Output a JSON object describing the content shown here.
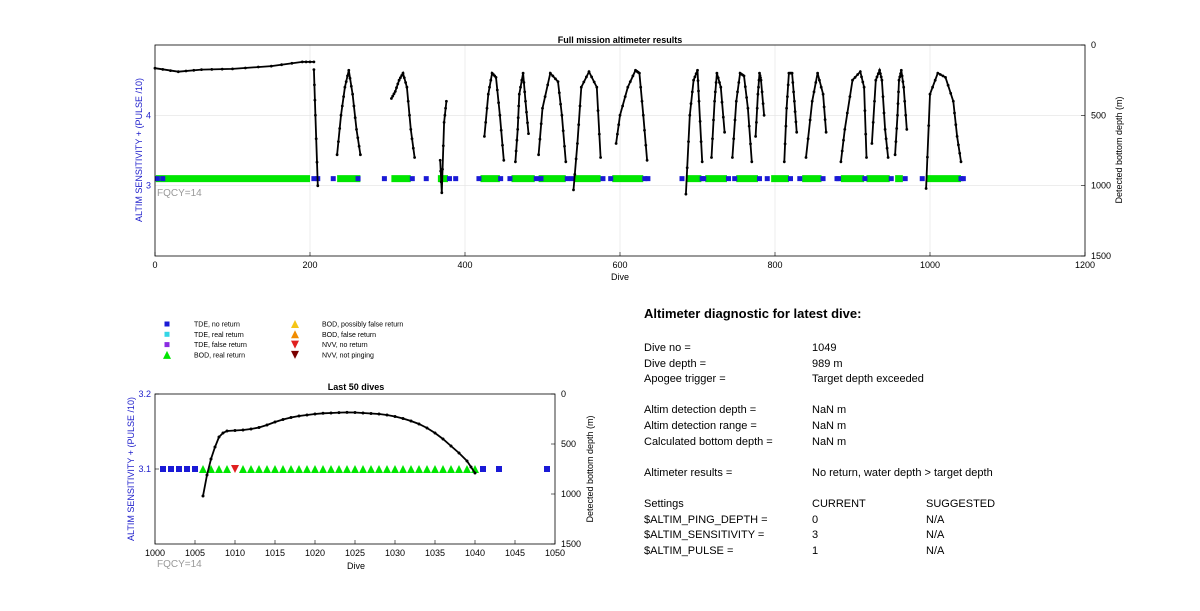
{
  "colors": {
    "tde_no_return": "#1a1ad6",
    "tde_real_return": "#33d6e6",
    "tde_false_return": "#8a2be2",
    "bod_real_return": "#00e600",
    "bod_possibly_false": "#f5c518",
    "bod_false_return": "#f08c00",
    "nvv_no_return": "#e02020",
    "nvv_not_pinging": "#7a0000",
    "depth_line": "#000000",
    "left_axis": "#2222cc",
    "fqcy": "#999999"
  },
  "chart_data": [
    {
      "type": "scatter",
      "title": "Full mission altimeter results",
      "xlabel": "Dive",
      "ylabel": "ALTIM SENSITIVITY + (PULSE /10)",
      "y2label": "Detected bottom depth (m)",
      "xlim": [
        0,
        1200
      ],
      "ylim": [
        2,
        5
      ],
      "y2lim": [
        1500,
        0
      ],
      "xticks": [
        "0",
        "200",
        "400",
        "600",
        "800",
        "1000",
        "1200"
      ],
      "yticks": [
        "3",
        "4"
      ],
      "y2ticks": [
        "0",
        "500",
        "1000",
        "1500"
      ],
      "grid": true,
      "annotation": "FQCY=14",
      "sensitivity_level": 3.1,
      "bod_segments": [
        [
          1,
          200
        ],
        [
          235,
          265
        ],
        [
          305,
          330
        ],
        [
          365,
          378
        ],
        [
          420,
          445
        ],
        [
          460,
          490
        ],
        [
          495,
          530
        ],
        [
          540,
          575
        ],
        [
          590,
          630
        ],
        [
          685,
          705
        ],
        [
          710,
          738
        ],
        [
          750,
          778
        ],
        [
          795,
          818
        ],
        [
          835,
          860
        ],
        [
          885,
          915
        ],
        [
          918,
          948
        ],
        [
          955,
          965
        ],
        [
          995,
          1040
        ]
      ],
      "tde_points": [
        3,
        10,
        205,
        210,
        230,
        262,
        296,
        332,
        350,
        380,
        388,
        418,
        446,
        458,
        492,
        498,
        532,
        538,
        578,
        588,
        632,
        636,
        680,
        706,
        708,
        740,
        748,
        780,
        790,
        820,
        832,
        862,
        880,
        882,
        916,
        950,
        968,
        990,
        1040,
        1043
      ],
      "depth_series": [
        [
          [
            0,
            165
          ],
          [
            30,
            190
          ],
          [
            60,
            175
          ],
          [
            100,
            170
          ],
          [
            150,
            150
          ],
          [
            190,
            120
          ],
          [
            205,
            120
          ]
        ],
        [
          [
            205,
            175
          ],
          [
            207,
            500
          ],
          [
            210,
            1000
          ]
        ],
        [
          [
            235,
            780
          ],
          [
            240,
            500
          ],
          [
            245,
            300
          ],
          [
            250,
            180
          ],
          [
            255,
            350
          ],
          [
            260,
            600
          ],
          [
            265,
            780
          ]
        ],
        [
          [
            305,
            380
          ],
          [
            310,
            330
          ],
          [
            315,
            250
          ],
          [
            320,
            200
          ],
          [
            325,
            300
          ],
          [
            330,
            600
          ],
          [
            335,
            800
          ]
        ],
        [
          [
            368,
            820
          ],
          [
            370,
            1050
          ],
          [
            373,
            550
          ],
          [
            376,
            400
          ]
        ],
        [
          [
            425,
            650
          ],
          [
            430,
            350
          ],
          [
            435,
            200
          ],
          [
            440,
            230
          ],
          [
            445,
            500
          ],
          [
            450,
            820
          ]
        ],
        [
          [
            465,
            830
          ],
          [
            468,
            600
          ],
          [
            470,
            350
          ],
          [
            475,
            200
          ],
          [
            478,
            400
          ],
          [
            482,
            630
          ]
        ],
        [
          [
            495,
            780
          ],
          [
            500,
            450
          ],
          [
            510,
            200
          ],
          [
            520,
            260
          ],
          [
            525,
            500
          ],
          [
            530,
            830
          ]
        ],
        [
          [
            540,
            1030
          ],
          [
            545,
            700
          ],
          [
            550,
            300
          ],
          [
            560,
            190
          ],
          [
            570,
            300
          ],
          [
            575,
            800
          ]
        ],
        [
          [
            595,
            700
          ],
          [
            600,
            500
          ],
          [
            610,
            300
          ],
          [
            620,
            180
          ],
          [
            625,
            200
          ],
          [
            630,
            500
          ],
          [
            635,
            820
          ]
        ],
        [
          [
            685,
            1060
          ],
          [
            690,
            500
          ],
          [
            695,
            250
          ],
          [
            700,
            180
          ],
          [
            702,
            400
          ],
          [
            706,
            830
          ]
        ],
        [
          [
            718,
            800
          ],
          [
            722,
            400
          ],
          [
            725,
            200
          ],
          [
            730,
            300
          ],
          [
            735,
            620
          ]
        ],
        [
          [
            745,
            800
          ],
          [
            750,
            400
          ],
          [
            755,
            200
          ],
          [
            760,
            220
          ],
          [
            765,
            450
          ],
          [
            770,
            830
          ]
        ],
        [
          [
            775,
            650
          ],
          [
            778,
            350
          ],
          [
            780,
            200
          ],
          [
            782,
            250
          ],
          [
            786,
            500
          ]
        ],
        [
          [
            812,
            830
          ],
          [
            815,
            450
          ],
          [
            818,
            200
          ],
          [
            822,
            200
          ],
          [
            825,
            400
          ],
          [
            828,
            620
          ]
        ],
        [
          [
            840,
            800
          ],
          [
            848,
            400
          ],
          [
            855,
            200
          ],
          [
            862,
            350
          ],
          [
            866,
            620
          ]
        ],
        [
          [
            885,
            830
          ],
          [
            890,
            600
          ],
          [
            900,
            250
          ],
          [
            910,
            190
          ],
          [
            915,
            300
          ],
          [
            918,
            800
          ]
        ],
        [
          [
            925,
            700
          ],
          [
            930,
            250
          ],
          [
            935,
            180
          ],
          [
            938,
            250
          ],
          [
            942,
            600
          ],
          [
            946,
            800
          ]
        ],
        [
          [
            955,
            780
          ],
          [
            958,
            500
          ],
          [
            960,
            250
          ],
          [
            963,
            180
          ],
          [
            966,
            300
          ],
          [
            970,
            600
          ]
        ],
        [
          [
            995,
            1020
          ],
          [
            1000,
            350
          ],
          [
            1010,
            200
          ],
          [
            1020,
            230
          ],
          [
            1030,
            400
          ],
          [
            1035,
            650
          ],
          [
            1040,
            830
          ]
        ]
      ]
    },
    {
      "type": "scatter",
      "title": "Last 50 dives",
      "xlabel": "Dive",
      "ylabel": "ALTIM SENSITIVITY + (PULSE /10)",
      "y2label": "Detected bottom depth (m)",
      "xlim": [
        1000,
        1050
      ],
      "ylim": [
        3.0,
        3.2
      ],
      "y2lim": [
        1500,
        0
      ],
      "xticks": [
        "1000",
        "1005",
        "1010",
        "1015",
        "1020",
        "1025",
        "1030",
        "1035",
        "1040",
        "1045",
        "1050"
      ],
      "yticks": [
        "3.1",
        "3.2"
      ],
      "y2ticks": [
        "0",
        "500",
        "1000",
        "1500"
      ],
      "annotation": "FQCY=14",
      "sensitivity_level": 3.1,
      "tde_points": [
        1001,
        1002,
        1003,
        1004,
        1005,
        1041,
        1043,
        1049
      ],
      "bod_points": [
        1006,
        1007,
        1008,
        1009,
        1011,
        1012,
        1013,
        1014,
        1015,
        1016,
        1017,
        1018,
        1019,
        1020,
        1021,
        1022,
        1023,
        1024,
        1025,
        1026,
        1027,
        1028,
        1029,
        1030,
        1031,
        1032,
        1033,
        1034,
        1035,
        1036,
        1037,
        1038,
        1039,
        1040
      ],
      "nvv_no_return_points": [
        1010
      ],
      "depth": [
        [
          1006,
          1020
        ],
        [
          1006.5,
          810
        ],
        [
          1007,
          650
        ],
        [
          1007.5,
          530
        ],
        [
          1008,
          430
        ],
        [
          1008.5,
          390
        ],
        [
          1009,
          370
        ],
        [
          1010,
          365
        ],
        [
          1011,
          360
        ],
        [
          1012,
          350
        ],
        [
          1013,
          335
        ],
        [
          1014,
          310
        ],
        [
          1015,
          280
        ],
        [
          1016,
          255
        ],
        [
          1017,
          235
        ],
        [
          1018,
          220
        ],
        [
          1019,
          210
        ],
        [
          1020,
          200
        ],
        [
          1021,
          193
        ],
        [
          1022,
          190
        ],
        [
          1023,
          186
        ],
        [
          1024,
          184
        ],
        [
          1025,
          185
        ],
        [
          1026,
          190
        ],
        [
          1027,
          195
        ],
        [
          1028,
          200
        ],
        [
          1029,
          210
        ],
        [
          1030,
          225
        ],
        [
          1031,
          245
        ],
        [
          1032,
          270
        ],
        [
          1033,
          300
        ],
        [
          1034,
          340
        ],
        [
          1035,
          390
        ],
        [
          1036,
          450
        ],
        [
          1037,
          520
        ],
        [
          1038,
          590
        ],
        [
          1039,
          670
        ],
        [
          1039.5,
          730
        ],
        [
          1040,
          790
        ]
      ]
    }
  ],
  "legend": {
    "items": [
      {
        "label": "TDE, no return",
        "marker": "square",
        "color_key": "tde_no_return"
      },
      {
        "label": "TDE, real return",
        "marker": "square",
        "color_key": "tde_real_return"
      },
      {
        "label": "TDE, false return",
        "marker": "square",
        "color_key": "tde_false_return"
      },
      {
        "label": "BOD, real return",
        "marker": "triangle-up",
        "color_key": "bod_real_return"
      },
      {
        "label": "BOD, possibly false return",
        "marker": "triangle-up",
        "color_key": "bod_possibly_false"
      },
      {
        "label": "BOD, false return",
        "marker": "triangle-up",
        "color_key": "bod_false_return"
      },
      {
        "label": "NVV, no return",
        "marker": "triangle-down",
        "color_key": "nvv_no_return"
      },
      {
        "label": "NVV, not pinging",
        "marker": "triangle-down",
        "color_key": "nvv_not_pinging"
      }
    ]
  },
  "diagnostic": {
    "title": "Altimeter diagnostic for latest dive:",
    "dive_no_label": "Dive no =",
    "dive_no": "1049",
    "dive_depth_label": "Dive depth =",
    "dive_depth": "989 m",
    "apogee_label": "Apogee trigger =",
    "apogee": "Target depth exceeded",
    "detection_depth_label": "Altim detection depth =",
    "detection_depth": "NaN m",
    "detection_range_label": "Altim detection range =",
    "detection_range": "NaN m",
    "bottom_depth_label": "Calculated bottom depth =",
    "bottom_depth": "NaN m",
    "results_label": "Altimeter results =",
    "results": "No return, water depth > target depth",
    "settings_header": "Settings",
    "current_header": "CURRENT",
    "suggested_header": "SUGGESTED",
    "settings": [
      {
        "name": "$ALTIM_PING_DEPTH =",
        "current": "0",
        "suggested": "N/A"
      },
      {
        "name": "$ALTIM_SENSITIVITY =",
        "current": "3",
        "suggested": "N/A"
      },
      {
        "name": "$ALTIM_PULSE =",
        "current": "1",
        "suggested": "N/A"
      }
    ]
  }
}
